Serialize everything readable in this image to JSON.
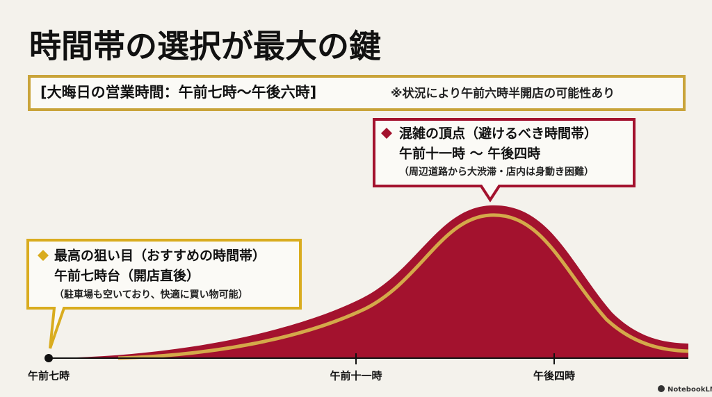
{
  "title": "時間帯の選択が最大の鍵",
  "subtitle": {
    "main": "[大晦日の営業時間：午前七時〜午後六時]",
    "note": "※状況により午前六時半開店の可能性あり"
  },
  "callouts": [
    {
      "heading": "最高の狙い目（おすすめの時間帯）",
      "time": "午前七時台（開店直後）",
      "note": "（駐車場も空いており、快適に買い物可能）"
    },
    {
      "heading": "混雑の頂点（避けるべき時間帯）",
      "time": "午前十一時 〜 午後四時",
      "note": "（周辺道路から大渋滞・店内は身動き困難）"
    }
  ],
  "axis_labels": [
    "午前七時",
    "午前十一時",
    "午後四時"
  ],
  "watermark": "NotebookLM"
}
